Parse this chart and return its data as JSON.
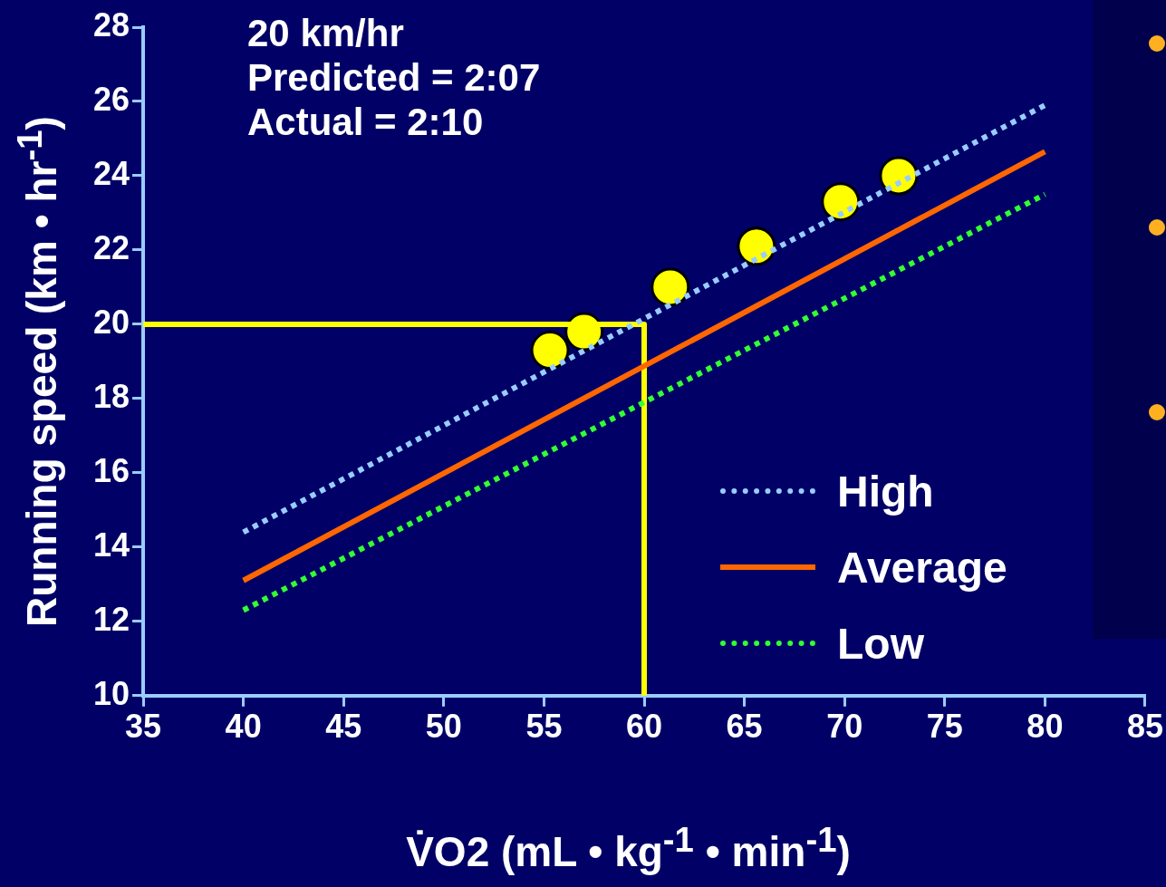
{
  "chart_data": {
    "type": "scatter",
    "xlabel": "V̇O2 (mL • kg$^{-1}$ • min$^{-1}$)",
    "ylabel": "Running speed (km • hr$^{-1}$)",
    "annotations": [
      "20 km/hr",
      "Predicted = 2:07",
      "Actual = 2:10"
    ],
    "xlim": [
      35,
      85
    ],
    "xticks": [
      35,
      40,
      45,
      50,
      55,
      60,
      65,
      70,
      75,
      80,
      85
    ],
    "ylim": [
      10,
      28
    ],
    "yticks": [
      10,
      12,
      14,
      16,
      18,
      20,
      22,
      24,
      26,
      28
    ],
    "grid": false,
    "legend": "bottom right",
    "series": [
      {
        "name": "High",
        "type": "line",
        "line_style": "dotted",
        "marker": "none",
        "color": "#99ccff",
        "x": [
          40,
          80
        ],
        "values": [
          14.4,
          25.9
        ]
      },
      {
        "name": "Average",
        "type": "line",
        "line_style": "solid",
        "marker": "none",
        "color": "#ff6600",
        "x": [
          40,
          80
        ],
        "values": [
          13.1,
          24.65
        ]
      },
      {
        "name": "Low",
        "type": "line",
        "line_style": "dotted",
        "marker": "none",
        "color": "#33ff33",
        "x": [
          40,
          80
        ],
        "values": [
          12.3,
          23.5
        ]
      },
      {
        "type": "line",
        "line_style": "solid",
        "marker": "none",
        "color": "#ffff00",
        "x": [
          35,
          60,
          60
        ],
        "values": [
          20,
          20,
          10
        ]
      },
      {
        "type": "scatter",
        "marker": "circle",
        "color": "#ffff00",
        "x": [
          55.3,
          57.0,
          61.3,
          65.6,
          69.8,
          72.7
        ],
        "values": [
          19.3,
          19.8,
          21.0,
          22.1,
          23.3,
          24.0
        ]
      }
    ]
  }
}
